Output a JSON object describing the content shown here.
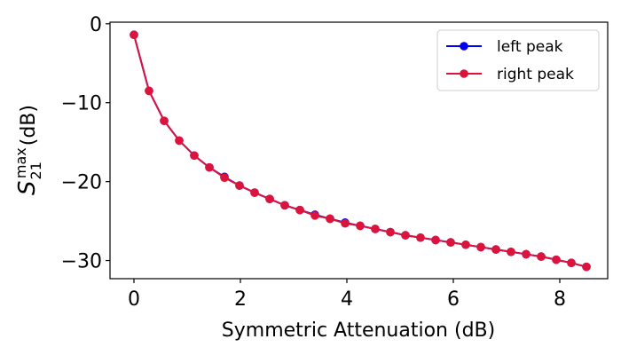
{
  "chart_data": {
    "type": "line",
    "xlabel": "Symmetric Attenuation (dB)",
    "ylabel": {
      "symbol": "S",
      "superscript": "max",
      "subscript": "21",
      "unit": "(dB)"
    },
    "xlim": [
      -0.45,
      8.9
    ],
    "ylim": [
      -32.3,
      0.2
    ],
    "xticks": [
      0,
      2,
      4,
      6,
      8
    ],
    "yticks": [
      0,
      -10,
      -20,
      -30
    ],
    "xtick_labels": [
      "0",
      "2",
      "4",
      "6",
      "8"
    ],
    "ytick_labels": [
      "0",
      "−10",
      "−20",
      "−30"
    ],
    "grid": false,
    "legend_position": "top-right",
    "x": [
      0,
      0.283,
      0.567,
      0.85,
      1.133,
      1.417,
      1.7,
      1.983,
      2.267,
      2.55,
      2.833,
      3.117,
      3.4,
      3.683,
      3.967,
      4.25,
      4.533,
      4.817,
      5.1,
      5.383,
      5.667,
      5.95,
      6.233,
      6.517,
      6.8,
      7.083,
      7.367,
      7.65,
      7.933,
      8.217,
      8.5
    ],
    "series": [
      {
        "name": "left peak",
        "color": "#0000ee",
        "marker": "circle",
        "values": [
          -1.4,
          -8.5,
          -12.3,
          -14.8,
          -16.7,
          -18.2,
          -19.4,
          -20.5,
          -21.4,
          -22.2,
          -23.0,
          -23.6,
          -24.2,
          -24.7,
          -25.2,
          -25.6,
          -26.0,
          -26.4,
          -26.8,
          -27.1,
          -27.4,
          -27.7,
          -28.0,
          -28.3,
          -28.6,
          -28.9,
          -29.2,
          -29.5,
          -29.9,
          -30.3,
          -30.8
        ]
      },
      {
        "name": "right peak",
        "color": "#dc143c",
        "marker": "circle",
        "values": [
          -1.4,
          -8.5,
          -12.3,
          -14.8,
          -16.7,
          -18.2,
          -19.5,
          -20.5,
          -21.4,
          -22.2,
          -23.0,
          -23.6,
          -24.3,
          -24.7,
          -25.3,
          -25.6,
          -26.0,
          -26.4,
          -26.8,
          -27.1,
          -27.4,
          -27.7,
          -28.0,
          -28.3,
          -28.6,
          -28.9,
          -29.2,
          -29.5,
          -29.9,
          -30.3,
          -30.8
        ]
      }
    ]
  }
}
